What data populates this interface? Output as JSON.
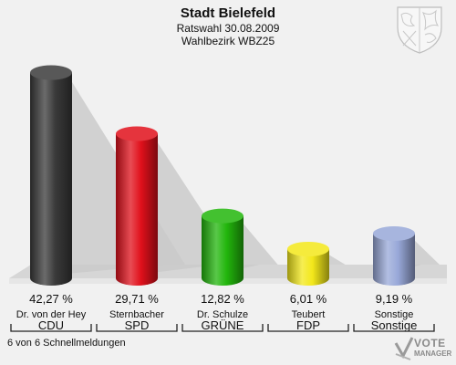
{
  "header": {
    "title": "Stadt Bielefeld",
    "subtitle": "Ratswahl 30.08.2009",
    "district": "Wahlbezirk WBZ25"
  },
  "footer": {
    "reports": "6 von 6 Schnellmeldungen",
    "brand_line1": "VOTE",
    "brand_line2": "MANAGER",
    "brand_icon": "ballot-check-icon"
  },
  "emblem": {
    "icon": "coat-of-arms-icon"
  },
  "chart_data": {
    "type": "bar",
    "title": "Stadt Bielefeld",
    "subtitle": "Ratswahl 30.08.2009 / Wahlbezirk WBZ25",
    "categories": [
      "CDU",
      "SPD",
      "GRÜNE",
      "FDP",
      "Sonstige"
    ],
    "candidates": [
      "Dr. von der Hey",
      "Sternbacher",
      "Dr. Schulze",
      "Teubert",
      "Sonstige"
    ],
    "values": [
      42.27,
      29.71,
      12.82,
      6.01,
      9.19
    ],
    "value_labels": [
      "42,27 %",
      "29,71 %",
      "12,82 %",
      "6,01 %",
      "9,19 %"
    ],
    "colors": [
      "#3a3a3a",
      "#e0101b",
      "#22b60c",
      "#f3e81a",
      "#98a8d8"
    ],
    "ylim": [
      0,
      45
    ],
    "grid": false,
    "legend": "none"
  }
}
